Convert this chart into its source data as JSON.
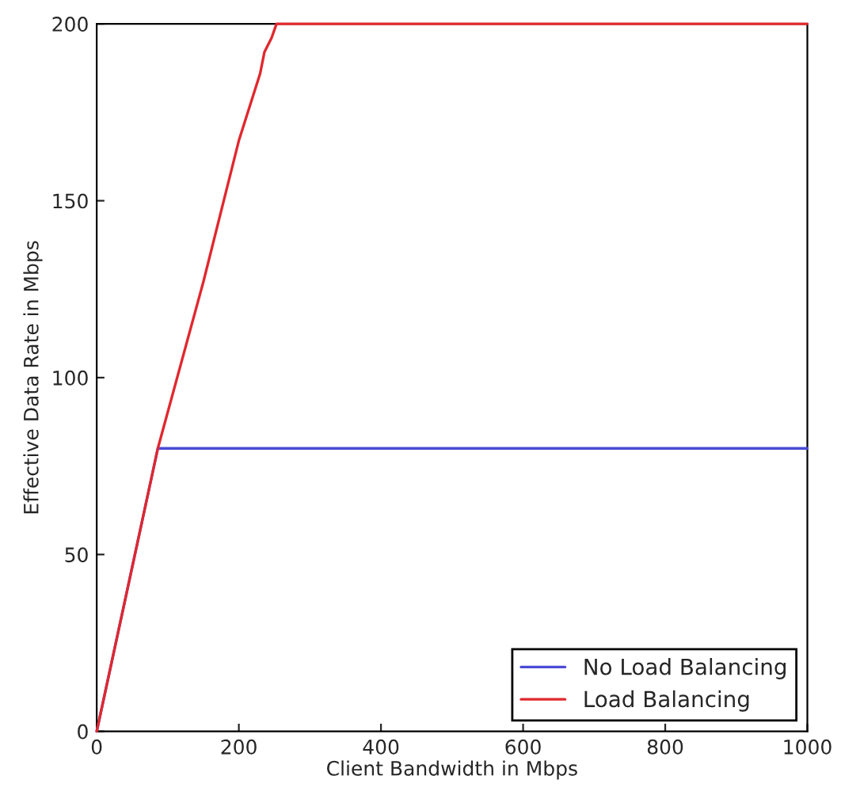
{
  "chart_data": {
    "type": "line",
    "xlabel": "Client Bandwidth in Mbps",
    "ylabel": "Effective Data Rate in Mbps",
    "series": [
      {
        "name": "No Load Balancing",
        "color": "#4b4bd6",
        "x": [
          0,
          86,
          1000
        ],
        "values": [
          0,
          80,
          80
        ]
      },
      {
        "name": "Load Balancing",
        "color": "#e0282e",
        "x": [
          0,
          86,
          150,
          200,
          230,
          236,
          246,
          253,
          1000
        ],
        "values": [
          0,
          80,
          127,
          167,
          186,
          192,
          196,
          200,
          200
        ]
      }
    ],
    "xlim": [
      0,
      1000
    ],
    "ylim": [
      0,
      200
    ],
    "xticks": [
      0,
      200,
      400,
      600,
      800,
      1000
    ],
    "yticks": [
      0,
      50,
      100,
      150,
      200
    ],
    "legend": "bottom right",
    "grid": false
  }
}
